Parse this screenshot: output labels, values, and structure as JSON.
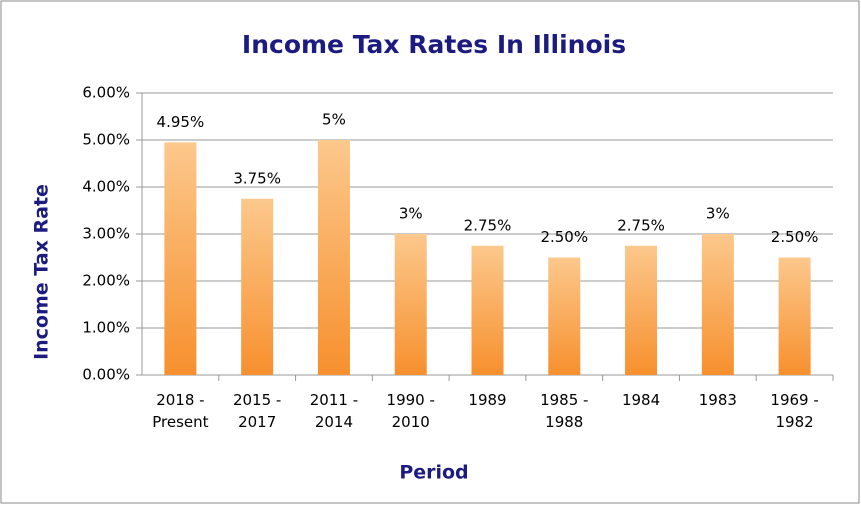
{
  "chart_data": {
    "type": "bar",
    "title": "Income Tax Rates In Illinois",
    "x_label": "Period",
    "y_label": "Income Tax Rate",
    "categories": [
      "2018 - Present",
      "2015 - 2017",
      "2011 - 2014",
      "1990 - 2010",
      "1989",
      "1985 - 1988",
      "1984",
      "1983",
      "1969 - 1982"
    ],
    "values": [
      4.95,
      3.75,
      5,
      3,
      2.75,
      2.5,
      2.75,
      3,
      2.5
    ],
    "value_labels": [
      "4.95%",
      "3.75%",
      "5%",
      "3%",
      "2.75%",
      "2.50%",
      "2.75%",
      "3%",
      "2.50%"
    ],
    "color": "#f7902e",
    "ylim": [
      0,
      6
    ],
    "yticks": [
      {
        "value": 0,
        "label": "0.00%"
      },
      {
        "value": 1,
        "label": "1.00%"
      },
      {
        "value": 2,
        "label": "2.00%"
      },
      {
        "value": 3,
        "label": "3.00%"
      },
      {
        "value": 4,
        "label": "4.00%"
      },
      {
        "value": 5,
        "label": "5.00%"
      },
      {
        "value": 6,
        "label": "6.00%"
      }
    ],
    "grid": true
  }
}
